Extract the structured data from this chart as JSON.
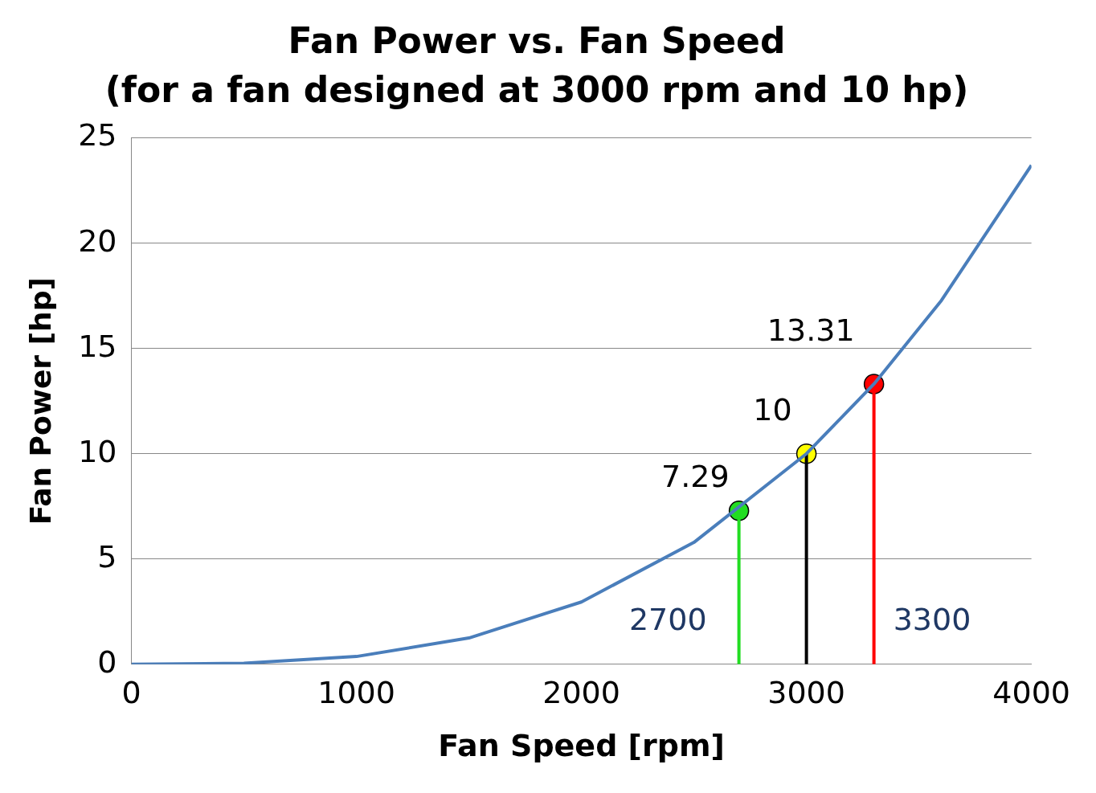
{
  "chart_data": {
    "type": "line",
    "title": "Fan Power vs. Fan Speed",
    "subtitle": "(for a fan designed at 3000 rpm and 10 hp)",
    "xlabel": "Fan Speed [rpm]",
    "ylabel": "Fan Power [hp]",
    "xlim": [
      0,
      4000
    ],
    "xticks": [
      0,
      1000,
      2000,
      3000,
      4000
    ],
    "ylim": [
      0,
      25
    ],
    "yticks": [
      0,
      5,
      10,
      15,
      20,
      25
    ],
    "grid": "y",
    "legend": false,
    "series": [
      {
        "color": "#4a7ebb",
        "marker": "none",
        "x": [
          0,
          500,
          1000,
          1500,
          2000,
          2500,
          3000,
          3300,
          3600,
          4000
        ],
        "values": [
          0,
          0.05,
          0.37,
          1.25,
          2.96,
          5.79,
          10,
          13.31,
          17.28,
          23.7
        ]
      },
      {
        "type": "line",
        "color": "#22dd22",
        "marker": "none",
        "x": [
          2700,
          2700
        ],
        "values": [
          0,
          7.29
        ]
      },
      {
        "type": "line",
        "color": "#000000",
        "marker": "none",
        "x": [
          3000,
          3000
        ],
        "values": [
          0,
          10
        ]
      },
      {
        "type": "line",
        "color": "#ff0000",
        "marker": "none",
        "x": [
          3300,
          3300
        ],
        "values": [
          0,
          13.31
        ]
      },
      {
        "type": "scatter",
        "marker": "circle",
        "x": [
          2700,
          3000,
          3300
        ],
        "values": [
          7.29,
          10,
          13.31
        ],
        "colors": [
          "#22dd22",
          "#ffff00",
          "#ff0000"
        ],
        "value_labels": [
          "7.29",
          "10",
          "13.31"
        ]
      }
    ],
    "annotations": [
      {
        "text": "2700",
        "x": 2700,
        "y": 2
      },
      {
        "text": "3300",
        "x": 3300,
        "y": 2
      }
    ]
  }
}
